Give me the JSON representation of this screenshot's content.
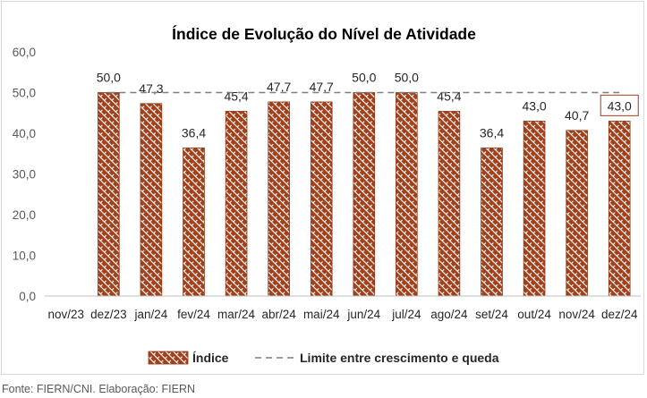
{
  "chart_data": {
    "type": "bar",
    "title": "Índice de Evolução do Nível de Atividade",
    "categories": [
      "nov/23",
      "dez/23",
      "jan/24",
      "fev/24",
      "mar/24",
      "abr/24",
      "mai/24",
      "jun/24",
      "jul/24",
      "ago/24",
      "set/24",
      "out/24",
      "nov/24",
      "dez/24"
    ],
    "series": [
      {
        "name": "Índice",
        "values": [
          null,
          50.0,
          47.3,
          36.4,
          45.4,
          47.7,
          47.7,
          50.0,
          50.0,
          45.4,
          36.4,
          43.0,
          40.7,
          43.0
        ],
        "data_labels": [
          "",
          "50,0",
          "47,3",
          "36,4",
          "45,4",
          "47,7",
          "47,7",
          "50,0",
          "50,0",
          "45,4",
          "36,4",
          "43,0",
          "40,7",
          "43,0"
        ],
        "color": "#A0411C",
        "pattern": "diagonal-brick"
      },
      {
        "name": "Limite entre crescimento e queda",
        "type": "line",
        "style": "dashed",
        "value": 50,
        "color": "#7F7F7F"
      }
    ],
    "y_ticks": [
      "0,0",
      "10,0",
      "20,0",
      "30,0",
      "40,0",
      "50,0",
      "60,0"
    ],
    "ylim": [
      0,
      60
    ],
    "xlabel": "",
    "ylabel": "",
    "grid": false,
    "legend": "bottom",
    "highlighted_label_index": 13
  },
  "source": "Fonte: FIERN/CNI. Elaboração: FIERN"
}
